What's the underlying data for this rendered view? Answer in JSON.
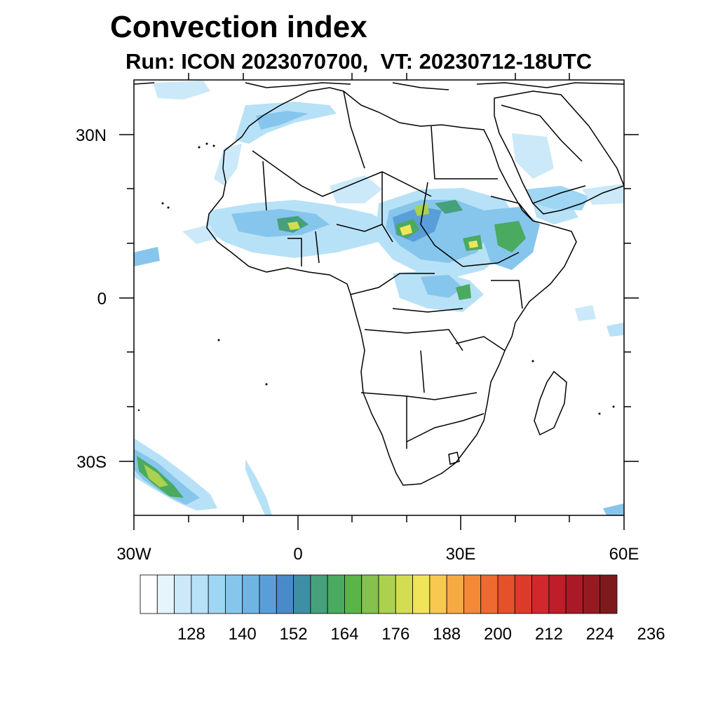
{
  "title": "Convection index",
  "subtitle": "Run: ICON 2023070700,  VT: 20230712-18UTC",
  "map": {
    "projection": "cylindrical-equidistant",
    "lon_range": [
      -30,
      60
    ],
    "lat_range": [
      -40,
      40
    ],
    "x_ticks": [
      "30W",
      "0",
      "30E",
      "60E"
    ],
    "y_ticks": [
      "30N",
      "0",
      "30S"
    ],
    "overlay": "country-borders"
  },
  "colorbar": {
    "labels": [
      "128",
      "140",
      "152",
      "164",
      "176",
      "188",
      "200",
      "212",
      "224",
      "236"
    ],
    "colors": [
      "#ffffff",
      "#e6f5fb",
      "#cbe9f8",
      "#b7e1f6",
      "#9fd6f3",
      "#86c6ec",
      "#70b4e4",
      "#5a9ed9",
      "#4a8ac8",
      "#3f8fa4",
      "#46a07c",
      "#4aaa5f",
      "#5ab44a",
      "#86c04d",
      "#acd04f",
      "#d4dd52",
      "#f0e55a",
      "#f8c850",
      "#f7a944",
      "#f4893a",
      "#ee6a30",
      "#e6512b",
      "#dc3a2a",
      "#d1292b",
      "#be1d29",
      "#a91a26",
      "#941b22",
      "#7e1a1e"
    ]
  }
}
